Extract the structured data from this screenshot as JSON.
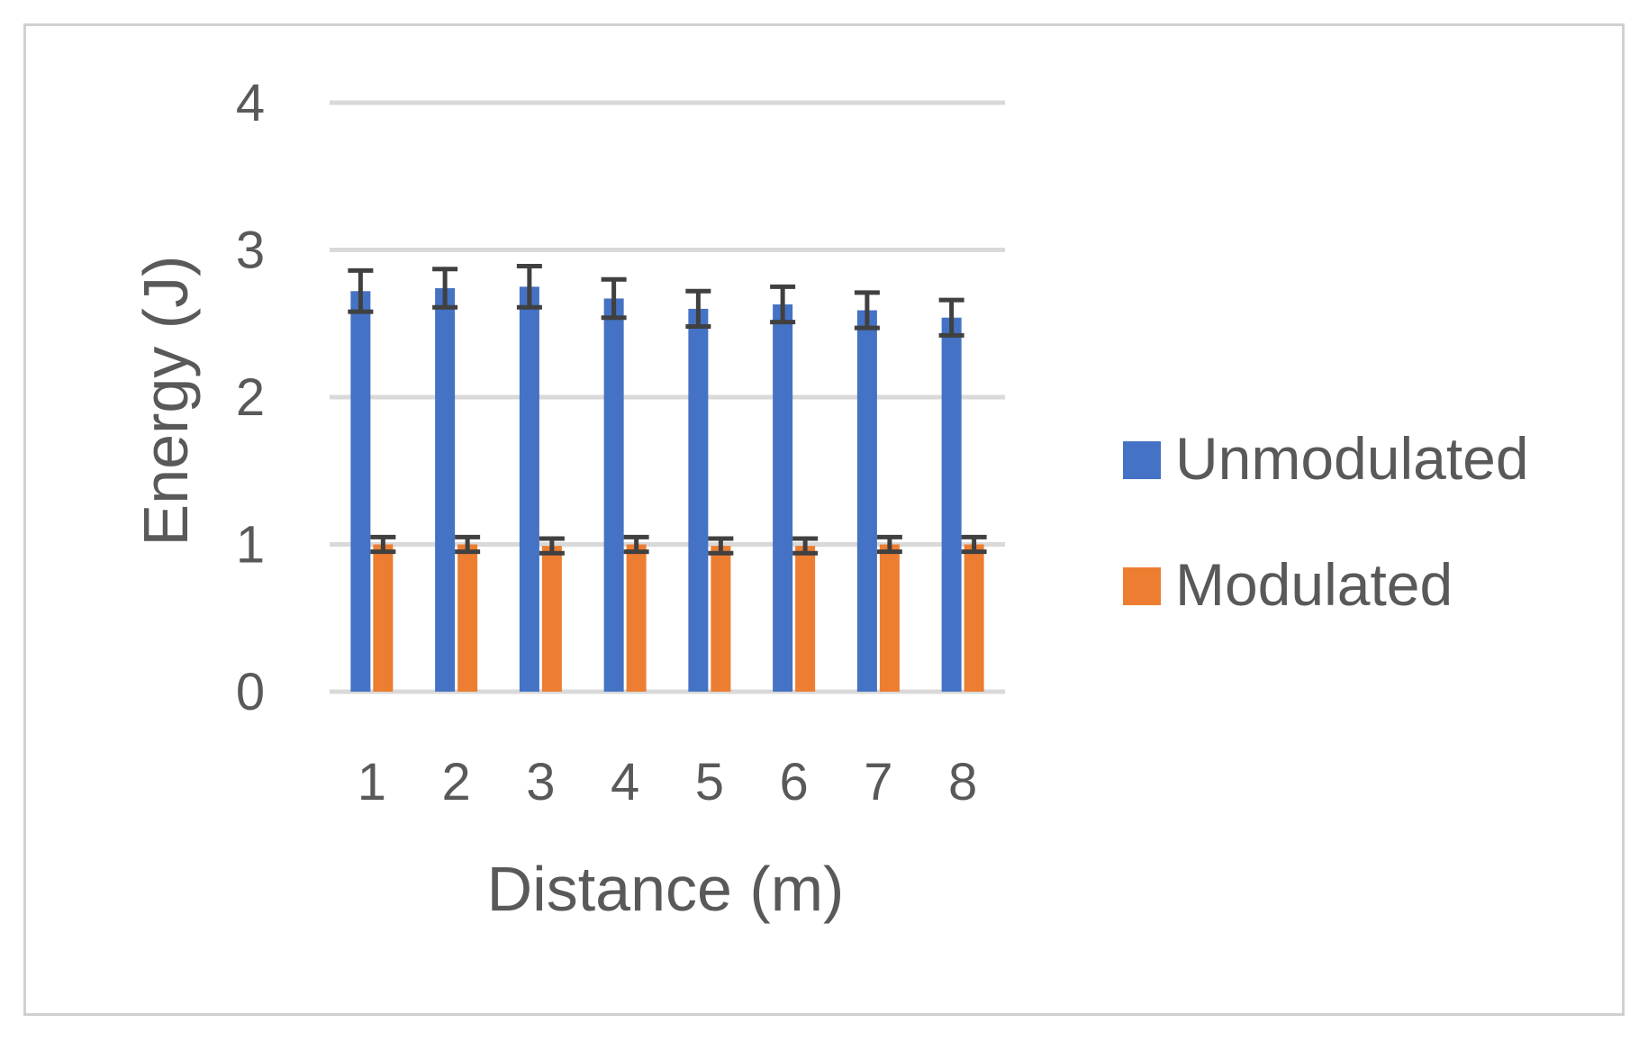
{
  "chart_data": {
    "type": "bar",
    "xlabel": "Distance (m)",
    "ylabel": "Energy (J)",
    "ylim": [
      0,
      4
    ],
    "yticks": [
      "0",
      "1",
      "2",
      "3",
      "4"
    ],
    "categories": [
      "1",
      "2",
      "3",
      "4",
      "5",
      "6",
      "7",
      "8"
    ],
    "grid": true,
    "legend_position": "right",
    "series": [
      {
        "name": "Unmodulated",
        "color": "#4472C4",
        "values": [
          2.72,
          2.74,
          2.75,
          2.67,
          2.6,
          2.63,
          2.59,
          2.54
        ],
        "error": [
          0.14,
          0.13,
          0.14,
          0.13,
          0.12,
          0.12,
          0.12,
          0.12
        ]
      },
      {
        "name": "Modulated",
        "color": "#ED7D31",
        "values": [
          1.0,
          1.0,
          0.99,
          1.0,
          0.99,
          0.99,
          1.0,
          1.0
        ],
        "error": [
          0.05,
          0.05,
          0.05,
          0.05,
          0.05,
          0.05,
          0.05,
          0.05
        ]
      }
    ],
    "errorbar_color": "#404040",
    "gridline_color": "#d9d9d9"
  }
}
